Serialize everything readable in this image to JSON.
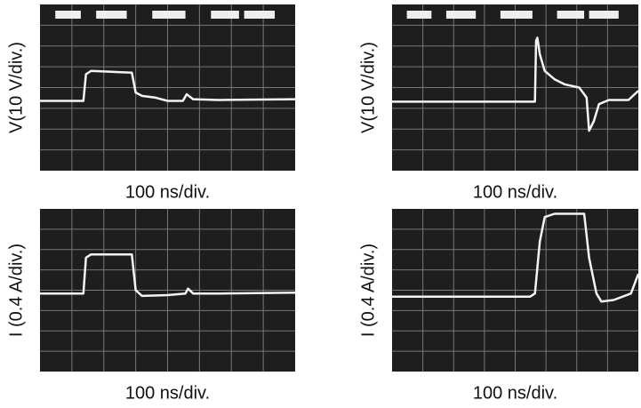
{
  "panels": [
    {
      "y_label": "V(10 V/div.)",
      "x_label": "100 ns/div."
    },
    {
      "y_label": "V(10 V/div.)",
      "x_label": "100 ns/div."
    },
    {
      "y_label": "I (0.4 A/div.)",
      "x_label": "100 ns/div."
    },
    {
      "y_label": "I (0.4 A/div.)",
      "x_label": "100 ns/div."
    }
  ]
}
